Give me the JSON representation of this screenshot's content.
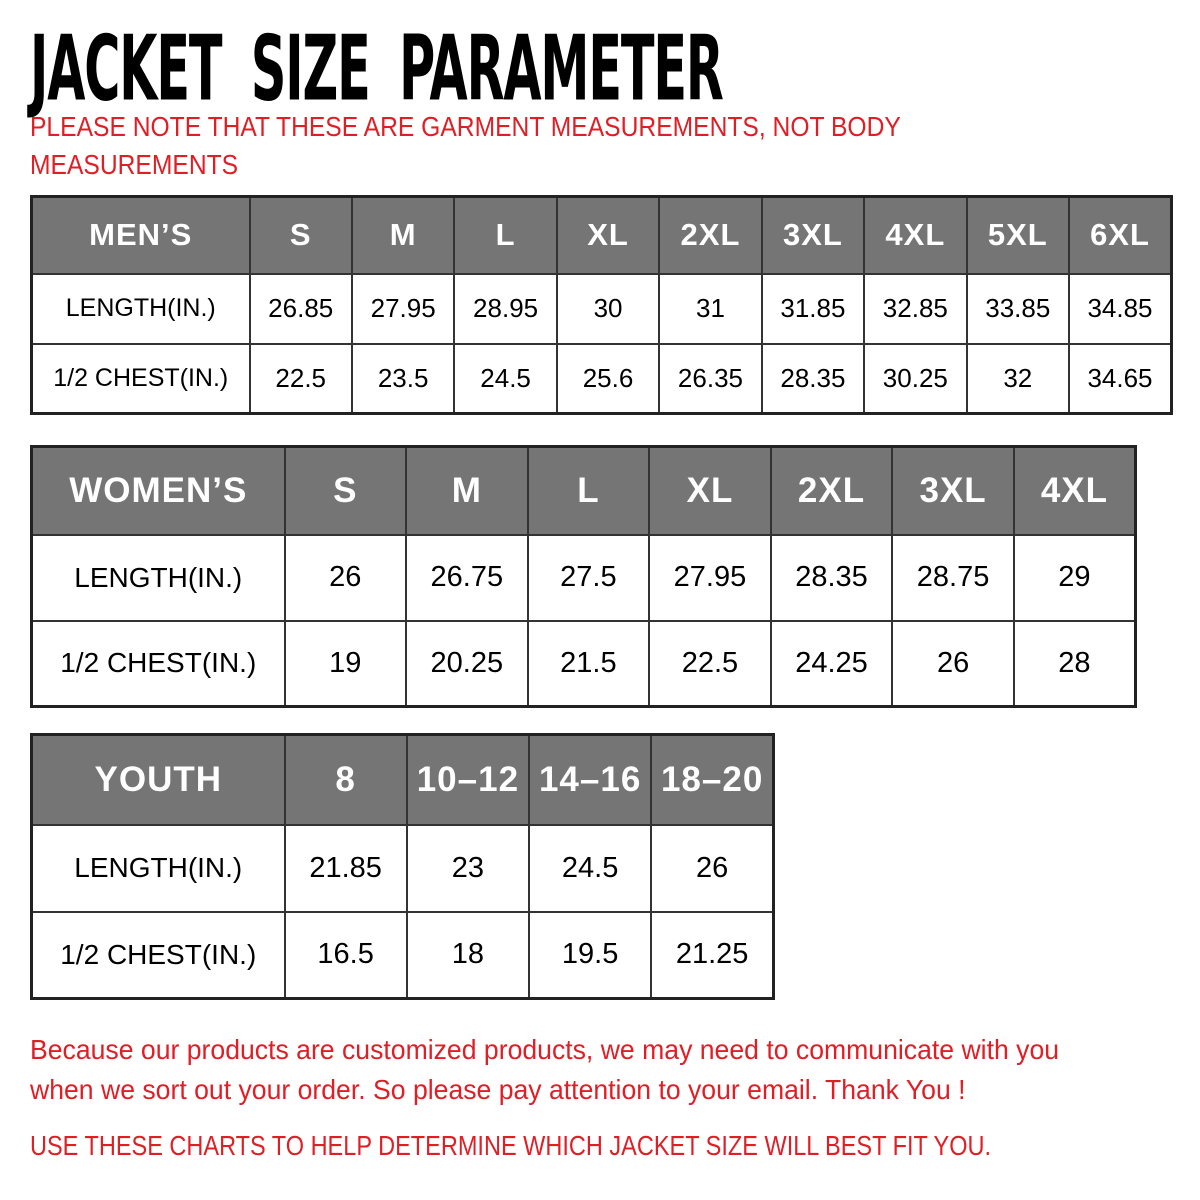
{
  "title": "JACKET SIZE PARAMETER",
  "note_lines": [
    "PLEASE NOTE THAT THESE ARE GARMENT MEASUREMENTS, NOT BODY",
    "MEASUREMENTS"
  ],
  "colors": {
    "accent_red": "#e01e26",
    "header_gray": "#757575",
    "table_border": "#333333",
    "title_black": "#000000"
  },
  "tables": [
    {
      "name": "MEN’S",
      "sizes": [
        "S",
        "M",
        "L",
        "XL",
        "2XL",
        "3XL",
        "4XL",
        "5XL",
        "6XL"
      ],
      "rows": [
        {
          "label": "LENGTH(IN.)",
          "values": [
            "26.85",
            "27.95",
            "28.95",
            "30",
            "31",
            "31.85",
            "32.85",
            "33.85",
            "34.85"
          ]
        },
        {
          "label": "1/2 CHEST(IN.)",
          "values": [
            "22.5",
            "23.5",
            "24.5",
            "25.6",
            "26.35",
            "28.35",
            "30.25",
            "32",
            "34.65"
          ]
        }
      ]
    },
    {
      "name": "WOMEN’S",
      "sizes": [
        "S",
        "M",
        "L",
        "XL",
        "2XL",
        "3XL",
        "4XL"
      ],
      "rows": [
        {
          "label": "LENGTH(IN.)",
          "values": [
            "26",
            "26.75",
            "27.5",
            "27.95",
            "28.35",
            "28.75",
            "29"
          ]
        },
        {
          "label": "1/2 CHEST(IN.)",
          "values": [
            "19",
            "20.25",
            "21.5",
            "22.5",
            "24.25",
            "26",
            "28"
          ]
        }
      ]
    },
    {
      "name": "YOUTH",
      "sizes": [
        "8",
        "10–12",
        "14–16",
        "18–20"
      ],
      "rows": [
        {
          "label": "LENGTH(IN.)",
          "values": [
            "21.85",
            "23",
            "24.5",
            "26"
          ]
        },
        {
          "label": "1/2 CHEST(IN.)",
          "values": [
            "16.5",
            "18",
            "19.5",
            "21.25"
          ]
        }
      ]
    }
  ],
  "footer": {
    "paragraph_lines": [
      "Because our products are customized products, we may need to communicate with you",
      "when we sort out your order. So please pay attention to your email. Thank You !"
    ],
    "instruction": "USE THESE CHARTS TO HELP DETERMINE WHICH JACKET SIZE WILL BEST FIT YOU."
  }
}
